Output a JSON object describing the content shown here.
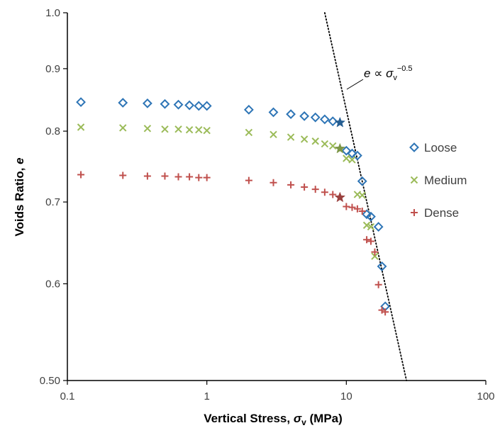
{
  "chart_data": {
    "type": "scatter",
    "xscale": "log",
    "yscale": "log",
    "xlim": [
      0.1,
      100
    ],
    "ylim": [
      0.5,
      1.0
    ],
    "x_ticks": [
      "0.1",
      "1",
      "10",
      "100"
    ],
    "y_ticks": [
      "0.50",
      "0.6",
      "0.7",
      "0.8",
      "0.9",
      "1.0"
    ],
    "y_tick_values": [
      0.5,
      0.6,
      0.7,
      0.8,
      0.9,
      1.0
    ],
    "x_tick_values": [
      0.1,
      1,
      10,
      100
    ],
    "xlabel": {
      "main": "Vertical Stress, ",
      "sym": "σ",
      "sub": "v",
      "unit": " (MPa)"
    },
    "ylabel": {
      "main": "Voids Ratio, ",
      "sym": "e"
    },
    "grid": false,
    "legend_position": "right",
    "annotation": {
      "lhs": "e",
      "rel": " ∝ ",
      "sym": "σ",
      "sub": "v",
      "exp": "−0.5"
    },
    "trend_line": {
      "style": "dotted",
      "color": "#000000",
      "from": [
        7.0,
        1.0
      ],
      "to": [
        27.0,
        0.5
      ]
    },
    "series": [
      {
        "name": "Loose",
        "marker": "diamond",
        "color": "#2E75B6",
        "x": [
          0.125,
          0.25,
          0.375,
          0.5,
          0.625,
          0.75,
          0.875,
          1.0,
          2.0,
          3.0,
          4.0,
          5.0,
          6.0,
          7.0,
          8.0,
          10.0,
          11.0,
          12.0,
          13.0,
          14.0,
          15.0,
          17.0,
          18.0,
          19.0
        ],
        "y": [
          0.845,
          0.844,
          0.843,
          0.842,
          0.841,
          0.84,
          0.839,
          0.839,
          0.833,
          0.829,
          0.826,
          0.823,
          0.821,
          0.818,
          0.815,
          0.771,
          0.767,
          0.764,
          0.728,
          0.684,
          0.681,
          0.668,
          0.62,
          0.575
        ],
        "star": [
          9.0,
          0.813
        ]
      },
      {
        "name": "Medium",
        "marker": "x",
        "color": "#9BBB59",
        "x": [
          0.125,
          0.25,
          0.375,
          0.5,
          0.625,
          0.75,
          0.875,
          1.0,
          2.0,
          3.0,
          4.0,
          5.0,
          6.0,
          7.0,
          8.0,
          10.0,
          11.0,
          12.0,
          13.0,
          14.0,
          15.0,
          16.0
        ],
        "y": [
          0.806,
          0.805,
          0.804,
          0.803,
          0.803,
          0.802,
          0.802,
          0.801,
          0.798,
          0.795,
          0.791,
          0.788,
          0.785,
          0.781,
          0.778,
          0.76,
          0.758,
          0.71,
          0.709,
          0.67,
          0.668,
          0.632
        ],
        "star": [
          9.0,
          0.774
        ]
      },
      {
        "name": "Dense",
        "marker": "plus",
        "color": "#C0504D",
        "x": [
          0.125,
          0.25,
          0.375,
          0.5,
          0.625,
          0.75,
          0.875,
          1.0,
          2.0,
          3.0,
          4.0,
          5.0,
          6.0,
          7.0,
          8.0,
          10.0,
          11.0,
          12.0,
          13.0,
          14.0,
          15.0,
          16.0,
          17.0,
          18.0,
          19.0
        ],
        "y": [
          0.737,
          0.736,
          0.735,
          0.735,
          0.734,
          0.734,
          0.733,
          0.733,
          0.729,
          0.726,
          0.723,
          0.72,
          0.717,
          0.713,
          0.71,
          0.694,
          0.693,
          0.691,
          0.688,
          0.652,
          0.65,
          0.637,
          0.599,
          0.571,
          0.569
        ],
        "star": [
          9.0,
          0.706
        ]
      }
    ]
  }
}
